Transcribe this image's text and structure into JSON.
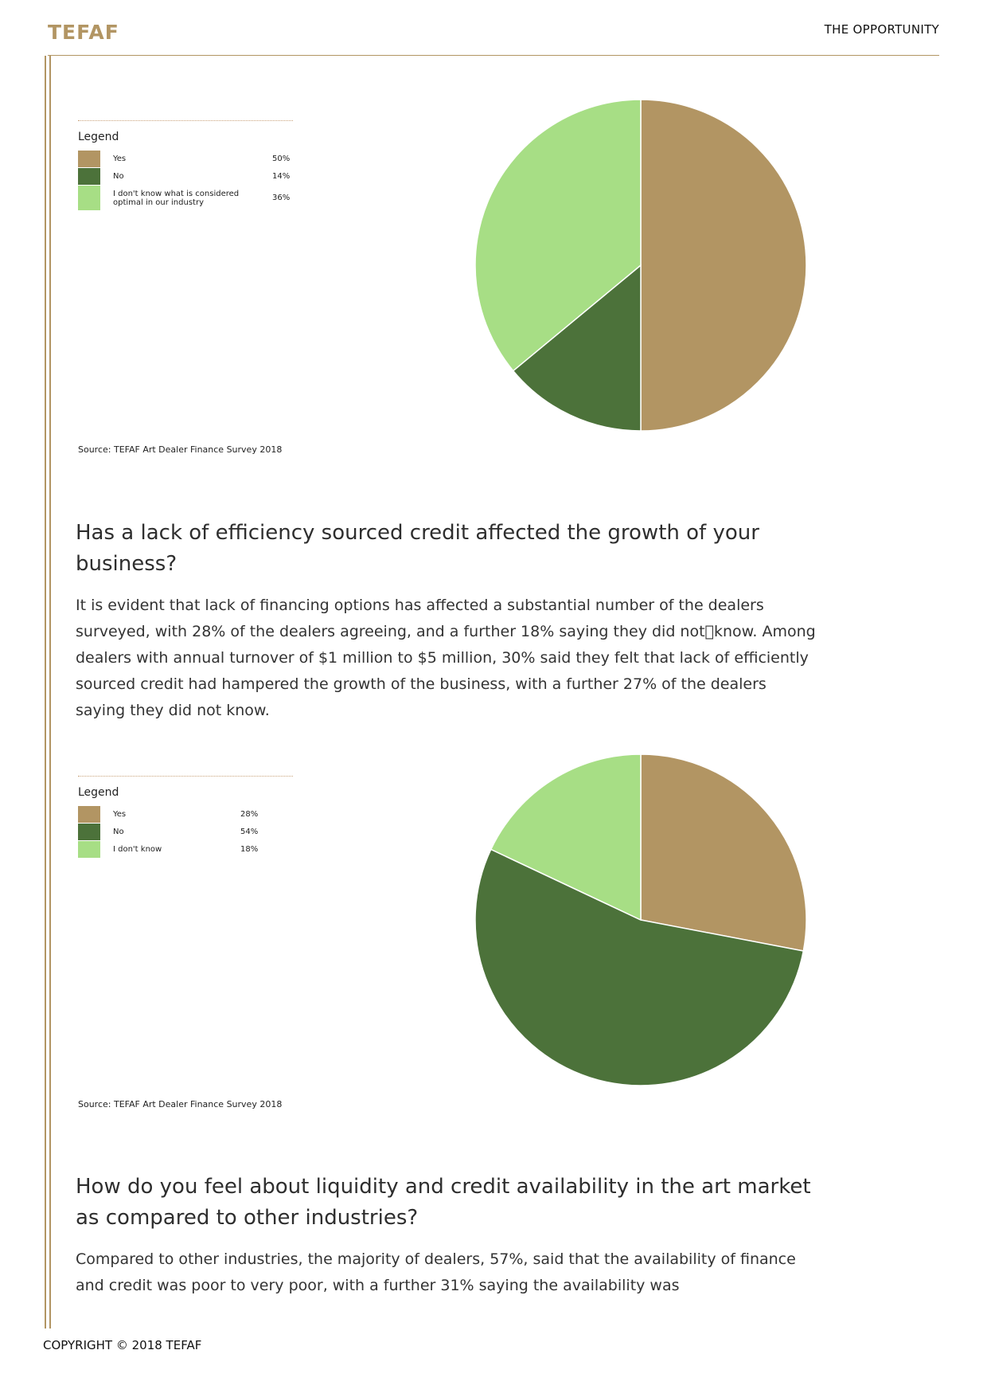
{
  "header": {
    "logo": "TEFAF",
    "section": "THE OPPORTUNITY"
  },
  "colors": {
    "accent": "#b29563",
    "yes": "#b29563",
    "no": "#4c723a",
    "dont_know": "#a7de85"
  },
  "chart1": {
    "legend_title": "Legend",
    "source": "Source: TEFAF Art Dealer Finance Survey 2018",
    "items": [
      {
        "label": "Yes",
        "pct": "50%"
      },
      {
        "label": "No",
        "pct": "14%"
      },
      {
        "label": "I don't know what is considered optimal in our industry",
        "pct": "36%"
      }
    ]
  },
  "section1": {
    "heading": "Has a lack of efficiency sourced credit affected the growth of your business?",
    "body": "It is evident that lack of financing options has affected a substantial number of the dealers surveyed, with 28% of the dealers agreeing, and a further 18% saying they did not\u0000know. Among dealers with annual turnover of $1 million to $5 million, 30% said they felt that lack of efficiently sourced credit had hampered the growth of the business, with a further 27% of the dealers saying they did not know."
  },
  "chart2": {
    "legend_title": "Legend",
    "source": "Source: TEFAF Art Dealer Finance Survey 2018",
    "items": [
      {
        "label": "Yes",
        "pct": "28%"
      },
      {
        "label": "No",
        "pct": "54%"
      },
      {
        "label": "I don't know",
        "pct": "18%"
      }
    ]
  },
  "section2": {
    "heading": "How do you feel about liquidity and credit availability in the art market as compared to other industries?",
    "body": "Compared to other industries, the majority of dealers, 57%, said that the availability of finance and credit was poor to very poor, with a further 31% saying the availability was"
  },
  "footer": {
    "copyright": "COPYRIGHT © 2018 TEFAF"
  },
  "chart_data": [
    {
      "type": "pie",
      "categories": [
        "Yes",
        "No",
        "I don't know what is considered optimal in our industry"
      ],
      "values": [
        50,
        14,
        36
      ],
      "legend_title": "Legend",
      "source": "Source: TEFAF Art Dealer Finance Survey 2018"
    },
    {
      "type": "pie",
      "categories": [
        "Yes",
        "No",
        "I don't know"
      ],
      "values": [
        28,
        54,
        18
      ],
      "legend_title": "Legend",
      "source": "Source: TEFAF Art Dealer Finance Survey 2018"
    }
  ]
}
